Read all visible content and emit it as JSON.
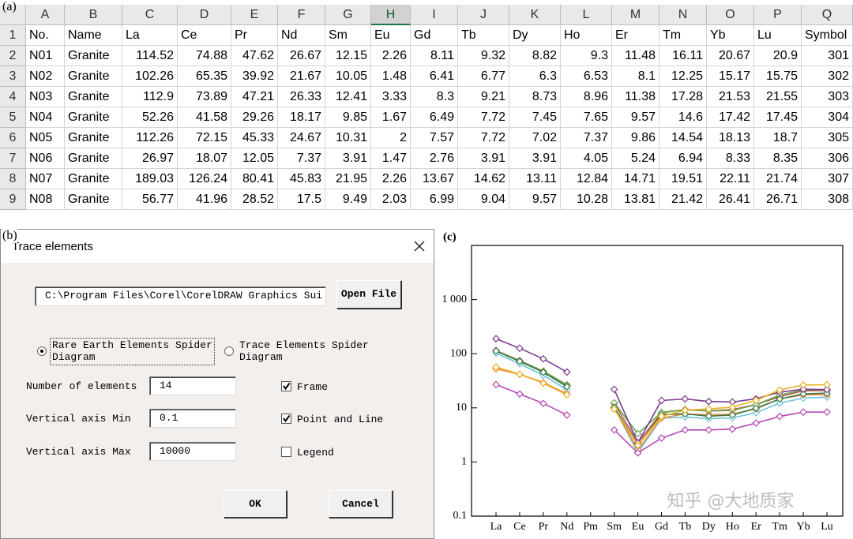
{
  "panel_labels": [
    "(a)",
    "(b)",
    "(c)"
  ],
  "spreadsheet": {
    "columns": [
      "A",
      "B",
      "C",
      "D",
      "E",
      "F",
      "G",
      "H",
      "I",
      "J",
      "K",
      "L",
      "M",
      "N",
      "O",
      "P",
      "Q"
    ],
    "selected_column": 7,
    "rows": [
      {
        "label": "1",
        "cells": [
          "No.",
          "Name",
          "La",
          "Ce",
          "Pr",
          "Nd",
          "Sm",
          "Eu",
          "Gd",
          "Tb",
          "Dy",
          "Ho",
          "Er",
          "Tm",
          "Yb",
          "Lu",
          "Symbol"
        ]
      },
      {
        "label": "2",
        "cells": [
          "N01",
          "Granite",
          "114.52",
          "74.88",
          "47.62",
          "26.67",
          "12.15",
          "2.26",
          "8.11",
          "9.32",
          "8.82",
          "9.3",
          "11.48",
          "16.11",
          "20.67",
          "20.9",
          "301"
        ]
      },
      {
        "label": "3",
        "cells": [
          "N02",
          "Granite",
          "102.26",
          "65.35",
          "39.92",
          "21.67",
          "10.05",
          "1.48",
          "6.41",
          "6.77",
          "6.3",
          "6.53",
          "8.1",
          "12.25",
          "15.17",
          "15.75",
          "302"
        ]
      },
      {
        "label": "4",
        "cells": [
          "N03",
          "Granite",
          "112.9",
          "73.89",
          "47.21",
          "26.33",
          "12.41",
          "3.33",
          "8.3",
          "9.21",
          "8.73",
          "8.96",
          "11.38",
          "17.28",
          "21.53",
          "21.55",
          "303"
        ]
      },
      {
        "label": "5",
        "cells": [
          "N04",
          "Granite",
          "52.26",
          "41.58",
          "29.26",
          "18.17",
          "9.85",
          "1.67",
          "6.49",
          "7.72",
          "7.45",
          "7.65",
          "9.57",
          "14.6",
          "17.42",
          "17.45",
          "304"
        ]
      },
      {
        "label": "6",
        "cells": [
          "N05",
          "Granite",
          "112.26",
          "72.15",
          "45.33",
          "24.67",
          "10.31",
          "2",
          "7.57",
          "7.72",
          "7.02",
          "7.37",
          "9.86",
          "14.54",
          "18.13",
          "18.7",
          "305"
        ]
      },
      {
        "label": "7",
        "cells": [
          "N06",
          "Granite",
          "26.97",
          "18.07",
          "12.05",
          "7.37",
          "3.91",
          "1.47",
          "2.76",
          "3.91",
          "3.91",
          "4.05",
          "5.24",
          "6.94",
          "8.33",
          "8.35",
          "306"
        ]
      },
      {
        "label": "8",
        "cells": [
          "N07",
          "Granite",
          "189.03",
          "126.24",
          "80.41",
          "45.83",
          "21.95",
          "2.26",
          "13.67",
          "14.62",
          "13.11",
          "12.84",
          "14.71",
          "19.51",
          "22.11",
          "21.74",
          "307"
        ]
      },
      {
        "label": "9",
        "cells": [
          "N08",
          "Granite",
          "56.77",
          "41.96",
          "28.52",
          "17.5",
          "9.49",
          "2.03",
          "6.99",
          "9.04",
          "9.57",
          "10.28",
          "13.81",
          "21.42",
          "26.41",
          "26.71",
          "308"
        ]
      }
    ]
  },
  "dialog": {
    "title": "Trace elements",
    "file_path": "C:\\Program Files\\Corel\\CorelDRAW Graphics Sui",
    "open_button": "Open File",
    "radios": [
      {
        "label": "Rare Earth Elements Spider Diagram",
        "selected": true
      },
      {
        "label": "Trace Elements Spider Diagram",
        "selected": false
      }
    ],
    "fields": [
      {
        "label": "Number of elements",
        "value": "14"
      },
      {
        "label": "Vertical axis Min",
        "value": "0.1"
      },
      {
        "label": "Vertical axis Max",
        "value": "10000"
      }
    ],
    "checkboxes": [
      {
        "label": "Frame",
        "checked": true
      },
      {
        "label": "Point and Line",
        "checked": true
      },
      {
        "label": "Legend",
        "checked": false
      }
    ],
    "ok_button": "OK",
    "cancel_button": "Cancel"
  },
  "chart_data": {
    "type": "line",
    "categories": [
      "La",
      "Ce",
      "Pr",
      "Nd",
      "Pm",
      "Sm",
      "Eu",
      "Gd",
      "Tb",
      "Dy",
      "Ho",
      "Er",
      "Tm",
      "Yb",
      "Lu"
    ],
    "log_scale": true,
    "marker": "diamond",
    "ylim": [
      0.1,
      10000
    ],
    "yticks": [
      0.1,
      1,
      10,
      100,
      {
        "value": 1000,
        "label": "1 000"
      }
    ],
    "watermark": "知乎 @大地质家",
    "series": [
      {
        "color": "#b5534a",
        "values": [
          114.52,
          74.88,
          47.62,
          26.67,
          null,
          12.15,
          2.26,
          8.11,
          9.32,
          8.82,
          9.3,
          11.48,
          16.11,
          20.67,
          20.9
        ]
      },
      {
        "color": "#6cc3dc",
        "values": [
          102.26,
          65.35,
          39.92,
          21.67,
          null,
          10.05,
          1.48,
          6.41,
          6.77,
          6.3,
          6.53,
          8.1,
          12.25,
          15.17,
          15.75
        ]
      },
      {
        "color": "#6aa84f",
        "values": [
          112.9,
          73.89,
          47.21,
          26.33,
          null,
          12.41,
          3.33,
          8.3,
          9.21,
          8.73,
          8.96,
          11.38,
          17.28,
          21.53,
          21.55
        ]
      },
      {
        "color": "#f08a3c",
        "values": [
          52.26,
          41.58,
          29.26,
          18.17,
          null,
          9.85,
          1.67,
          6.49,
          7.72,
          7.45,
          7.65,
          9.57,
          14.6,
          17.42,
          17.45
        ]
      },
      {
        "color": "#3d7a4a",
        "values": [
          112.26,
          72.15,
          45.33,
          24.67,
          null,
          10.31,
          2,
          7.57,
          7.72,
          7.02,
          7.37,
          9.86,
          14.54,
          18.13,
          18.7
        ]
      },
      {
        "color": "#b548b5",
        "values": [
          26.97,
          18.07,
          12.05,
          7.37,
          null,
          3.91,
          1.47,
          2.76,
          3.91,
          3.91,
          4.05,
          5.24,
          6.94,
          8.33,
          8.35
        ]
      },
      {
        "color": "#7a3b8f",
        "values": [
          189.03,
          126.24,
          80.41,
          45.83,
          null,
          21.95,
          2.26,
          13.67,
          14.62,
          13.11,
          12.84,
          14.71,
          19.51,
          22.11,
          21.74
        ]
      },
      {
        "color": "#e8b020",
        "values": [
          56.77,
          41.96,
          28.52,
          17.5,
          null,
          9.49,
          2.03,
          6.99,
          9.04,
          9.57,
          10.28,
          13.81,
          21.42,
          26.41,
          26.71
        ]
      }
    ]
  }
}
